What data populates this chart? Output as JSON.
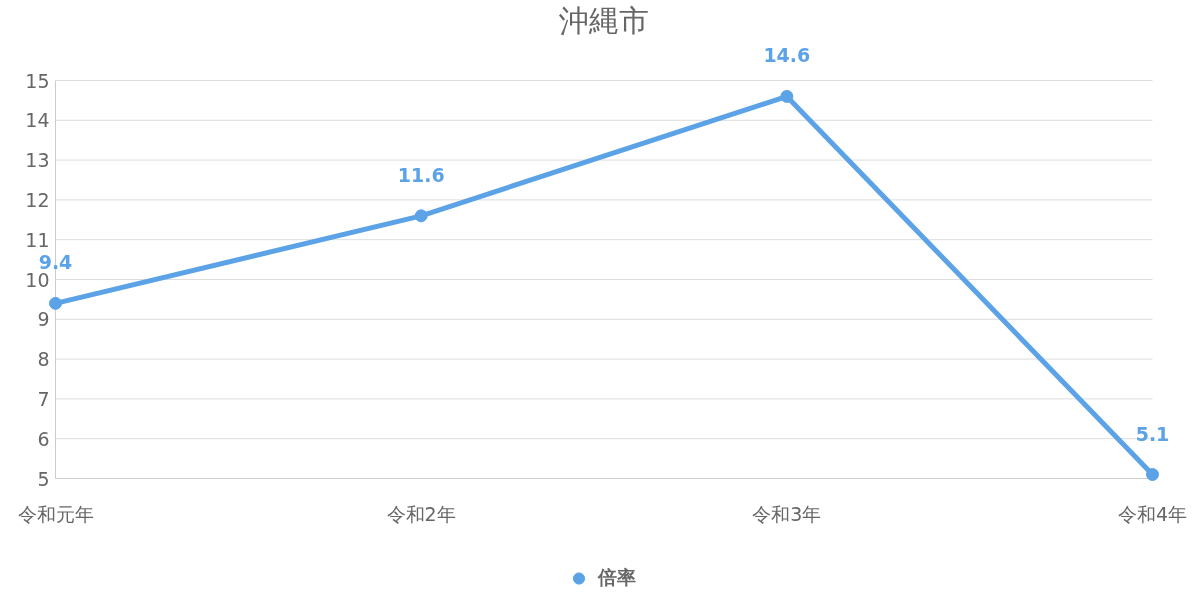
{
  "chart_data": {
    "type": "line",
    "title": "沖縄市",
    "categories": [
      "令和元年",
      "令和2年",
      "令和3年",
      "令和4年"
    ],
    "series": [
      {
        "name": "倍率",
        "color": "#5ba3e6",
        "values": [
          9.4,
          11.6,
          14.6,
          5.1
        ]
      }
    ],
    "ylim": [
      5,
      15
    ],
    "yticks": [
      5,
      6,
      7,
      8,
      9,
      10,
      11,
      12,
      13,
      14,
      15
    ],
    "grid": "y",
    "legend": "bottom",
    "marker": "circle",
    "line_style": "solid",
    "data_labels": true
  }
}
